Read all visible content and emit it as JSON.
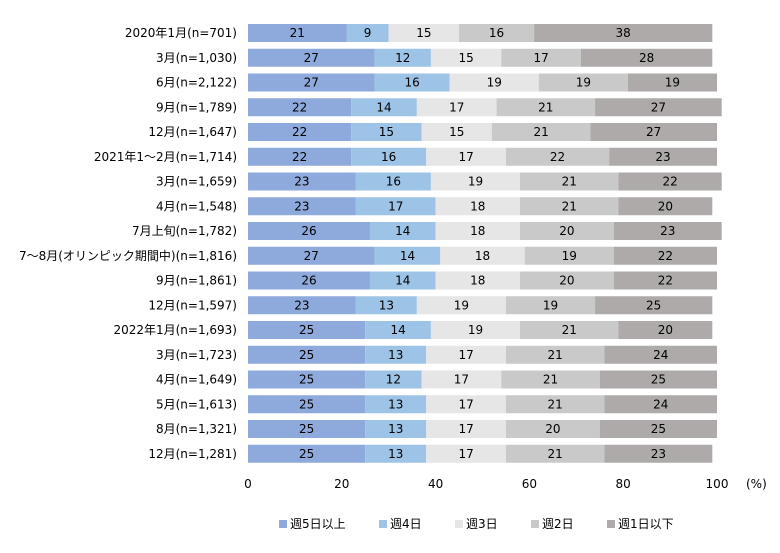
{
  "chart_data": {
    "type": "bar",
    "orientation": "horizontal-stacked-100",
    "categories": [
      "2020年1月(n=701)",
      "3月(n=1,030)",
      "6月(n=2,122)",
      "9月(n=1,789)",
      "12月(n=1,647)",
      "2021年1～2月(n=1,714)",
      "3月(n=1,659)",
      "4月(n=1,548)",
      "7月上旬(n=1,782)",
      "7～8月(オリンピック期間中)(n=1,816)",
      "9月(n=1,861)",
      "12月(n=1,597)",
      "2022年1月(n=1,693)",
      "3月(n=1,723)",
      "4月(n=1,649)",
      "5月(n=1,613)",
      "8月(n=1,321)",
      "12月(n=1,281)"
    ],
    "series": [
      {
        "name": "週5日以上",
        "color": "#8EA9DB",
        "values": [
          21,
          27,
          27,
          22,
          22,
          22,
          23,
          23,
          26,
          27,
          26,
          23,
          25,
          25,
          25,
          25,
          25,
          25
        ]
      },
      {
        "name": "週4日",
        "color": "#9DC3E6",
        "values": [
          9,
          12,
          16,
          14,
          15,
          16,
          16,
          17,
          14,
          14,
          14,
          13,
          14,
          13,
          12,
          13,
          13,
          13
        ]
      },
      {
        "name": "週3日",
        "color": "#E7E6E6",
        "values": [
          15,
          15,
          19,
          17,
          15,
          17,
          19,
          18,
          18,
          18,
          18,
          19,
          19,
          17,
          17,
          17,
          17,
          17
        ]
      },
      {
        "name": "週2日",
        "color": "#C9C9C9",
        "values": [
          16,
          17,
          19,
          21,
          21,
          22,
          21,
          21,
          20,
          19,
          20,
          19,
          21,
          21,
          21,
          21,
          20,
          21
        ]
      },
      {
        "name": "週1日以下",
        "color": "#AEAAAA",
        "values": [
          38,
          28,
          19,
          27,
          27,
          23,
          22,
          20,
          23,
          22,
          22,
          25,
          20,
          24,
          25,
          24,
          25,
          23
        ]
      }
    ],
    "xlim": [
      0,
      100
    ],
    "xticks": [
      "0",
      "20",
      "40",
      "60",
      "80",
      "100"
    ],
    "x_unit": "(%)",
    "legend_position": "bottom",
    "grid": false
  }
}
